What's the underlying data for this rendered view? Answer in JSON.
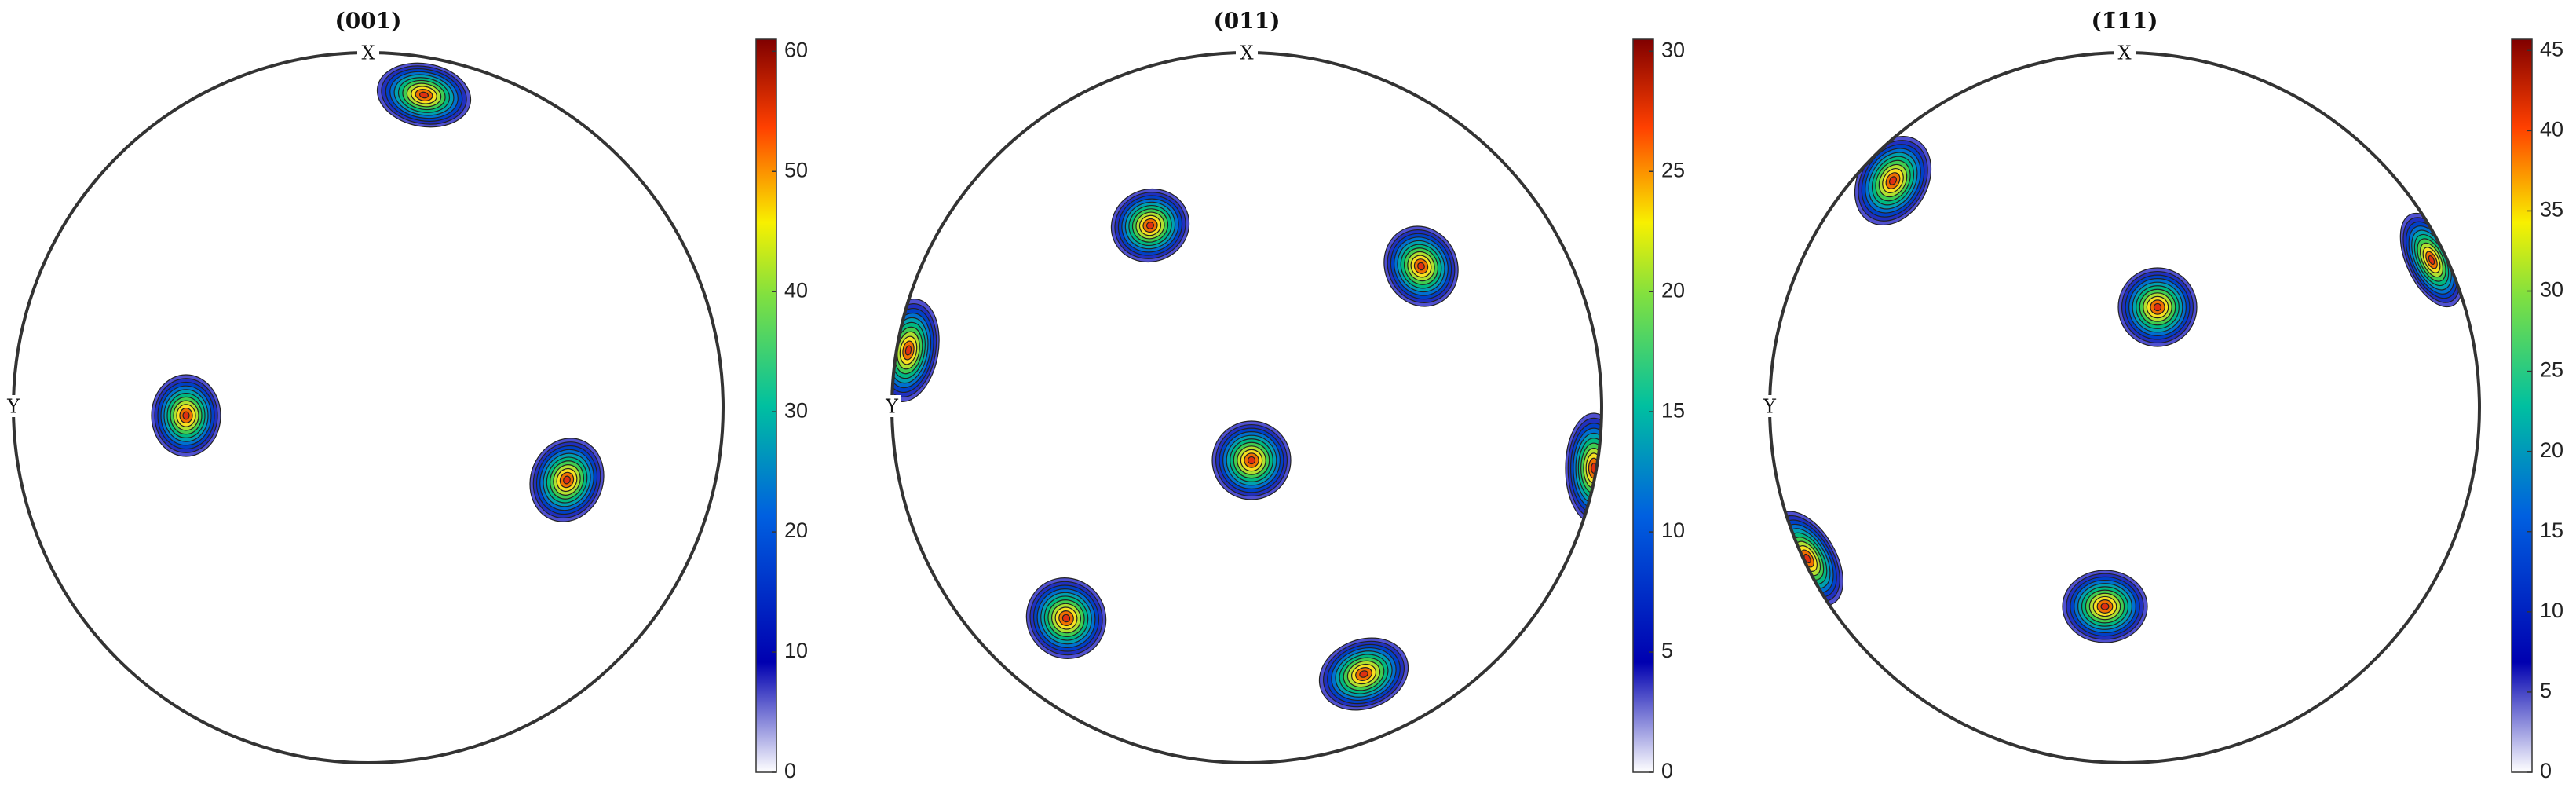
{
  "chart_data": [
    {
      "type": "pole_figure",
      "title": "(001)",
      "top_label": "X",
      "left_label": "Y",
      "clim": [
        0,
        61
      ],
      "cticks": [
        0,
        10,
        20,
        30,
        40,
        50,
        60
      ]
    },
    {
      "type": "pole_figure",
      "title": "(011)",
      "top_label": "X",
      "left_label": "Y",
      "clim": [
        0,
        30.5
      ],
      "cticks": [
        0,
        5,
        10,
        15,
        20,
        25,
        30
      ]
    },
    {
      "type": "pole_figure",
      "title": "(1̄11)",
      "top_label": "X",
      "left_label": "Y",
      "clim": [
        0,
        45.7
      ],
      "cticks": [
        0,
        5,
        10,
        15,
        20,
        25,
        30,
        35,
        40,
        45
      ]
    }
  ]
}
